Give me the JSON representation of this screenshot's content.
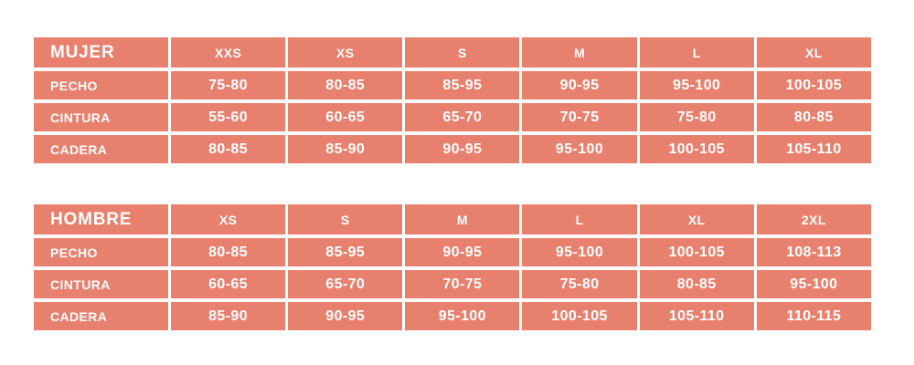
{
  "colors": {
    "cell_background": "#E8806E",
    "cell_text": "#FFFFFF",
    "page_background": "#FFFFFF"
  },
  "chart_data": [
    {
      "type": "table",
      "title": "MUJER",
      "columns": [
        "XXS",
        "XS",
        "S",
        "M",
        "L",
        "XL"
      ],
      "rows": [
        {
          "label": "PECHO",
          "values": [
            "75-80",
            "80-85",
            "85-95",
            "90-95",
            "95-100",
            "100-105"
          ]
        },
        {
          "label": "CINTURA",
          "values": [
            "55-60",
            "60-65",
            "65-70",
            "70-75",
            "75-80",
            "80-85"
          ]
        },
        {
          "label": "CADERA",
          "values": [
            "80-85",
            "85-90",
            "90-95",
            "95-100",
            "100-105",
            "105-110"
          ]
        }
      ]
    },
    {
      "type": "table",
      "title": "HOMBRE",
      "columns": [
        "XS",
        "S",
        "M",
        "L",
        "XL",
        "2XL"
      ],
      "rows": [
        {
          "label": "PECHO",
          "values": [
            "80-85",
            "85-95",
            "90-95",
            "95-100",
            "100-105",
            "108-113"
          ]
        },
        {
          "label": "CINTURA",
          "values": [
            "60-65",
            "65-70",
            "70-75",
            "75-80",
            "80-85",
            "95-100"
          ]
        },
        {
          "label": "CADERA",
          "values": [
            "85-90",
            "90-95",
            "95-100",
            "100-105",
            "105-110",
            "110-115"
          ]
        }
      ]
    }
  ]
}
